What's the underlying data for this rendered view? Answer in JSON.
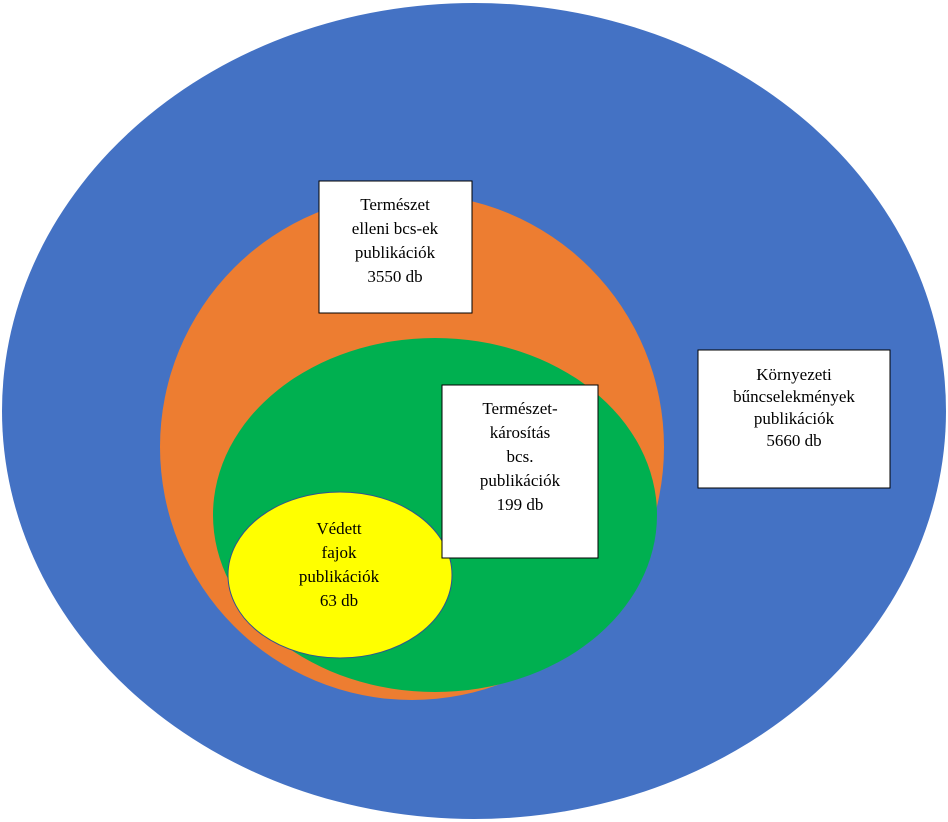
{
  "nodes": [
    {
      "lines": [
        "Környezeti",
        "bűncselekmények",
        "publikációk",
        "5660 db"
      ]
    },
    {
      "lines": [
        "Természet",
        "elleni bcs-ek",
        "publikációk",
        "3550 db"
      ]
    },
    {
      "lines": [
        "Természet-",
        "károsítás",
        "bcs.",
        "publikációk",
        "199 db"
      ]
    },
    {
      "lines": [
        "Védett",
        "fajok",
        "publikációk",
        "63 db"
      ]
    }
  ]
}
